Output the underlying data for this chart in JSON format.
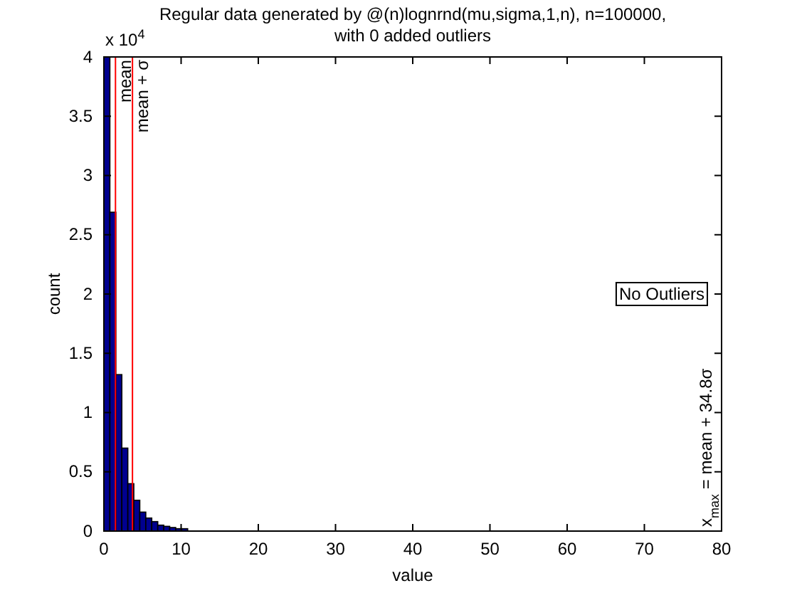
{
  "chart_data": {
    "type": "histogram",
    "title": "Regular data generated by @(n)lognrnd(mu,sigma,1,n), n=100000,",
    "subtitle": "with 0 added outliers",
    "xlabel": "value",
    "ylabel": "count",
    "color": "#00008f",
    "bins": [
      0,
      0.775,
      1.55,
      2.325,
      3.1,
      3.875,
      4.65,
      5.425,
      6.2,
      6.975,
      7.75,
      8.525,
      9.3,
      10.075,
      10.85,
      11.625,
      12.4,
      13.175,
      13.95,
      14.725,
      15.5,
      16.275,
      17.05,
      17.825,
      18.6,
      19.375,
      20.15,
      20.925,
      21.7,
      22.475,
      23.25,
      24.025,
      24.8,
      25.575,
      26.35,
      27.125,
      27.9,
      28.675,
      29.45,
      30.225,
      31,
      31.775,
      32.55,
      33.325,
      34.1,
      34.875,
      35.65,
      36.425,
      37.2,
      37.975,
      38.75,
      39.525,
      40.3,
      41.075,
      41.85,
      42.625,
      43.4,
      44.175,
      44.95,
      45.725,
      46.5,
      47.275,
      48.05,
      48.825,
      49.6,
      50.375,
      51.15,
      51.925,
      52.7,
      53.475,
      54.25,
      55.025,
      55.8,
      56.575,
      57.35,
      58.125,
      58.9,
      59.675,
      60.45,
      61.225,
      62,
      62.775,
      63.55,
      64.325,
      65.1,
      65.875,
      66.65,
      67.425,
      68.2,
      68.975,
      69.75,
      70.525,
      71.3,
      72.075,
      72.85,
      73.625,
      74.4,
      75.175,
      75.95,
      76.725,
      77.5
    ],
    "values": [
      4,
      2.69,
      1.32,
      0.7,
      0.4,
      0.26,
      0.16,
      0.11,
      0.08,
      0.05,
      0.04,
      0.03,
      0.02,
      0.02,
      0,
      0,
      0,
      0,
      0,
      0,
      0,
      0,
      0,
      0,
      0,
      0,
      0,
      0,
      0,
      0,
      0,
      0,
      0,
      0,
      0,
      0,
      0,
      0,
      0,
      0,
      0,
      0,
      0,
      0,
      0,
      0,
      0,
      0,
      0,
      0,
      0,
      0,
      0,
      0,
      0,
      0,
      0,
      0,
      0,
      0,
      0,
      0,
      0,
      0,
      0,
      0,
      0,
      0,
      0,
      0,
      0,
      0,
      0,
      0,
      0,
      0,
      0,
      0,
      0,
      0,
      0,
      0,
      0,
      0,
      0,
      0,
      0,
      0,
      0,
      0,
      0,
      0,
      0,
      0,
      0,
      0,
      0,
      0,
      0,
      0
    ],
    "xlim": [
      0,
      80
    ],
    "xticks": [
      0,
      10,
      20,
      30,
      40,
      50,
      60,
      70,
      80
    ],
    "ylim": [
      0,
      4
    ],
    "yticks": [
      0,
      0.5,
      1,
      1.5,
      2,
      2.5,
      3,
      3.5,
      4
    ],
    "ref_lines": [
      {
        "axis": "x",
        "value": 1.5,
        "label": "mean",
        "color": "#ff0000"
      },
      {
        "axis": "x",
        "value": 3.7,
        "label": "mean + σ",
        "color": "#ff0000"
      }
    ],
    "annotations": [
      "x 10$^{4}$",
      "No Outliers",
      {
        "text": "x$_{max}$ = mean + 34.8σ",
        "x": 78,
        "y": 0
      }
    ],
    "grid": false
  }
}
